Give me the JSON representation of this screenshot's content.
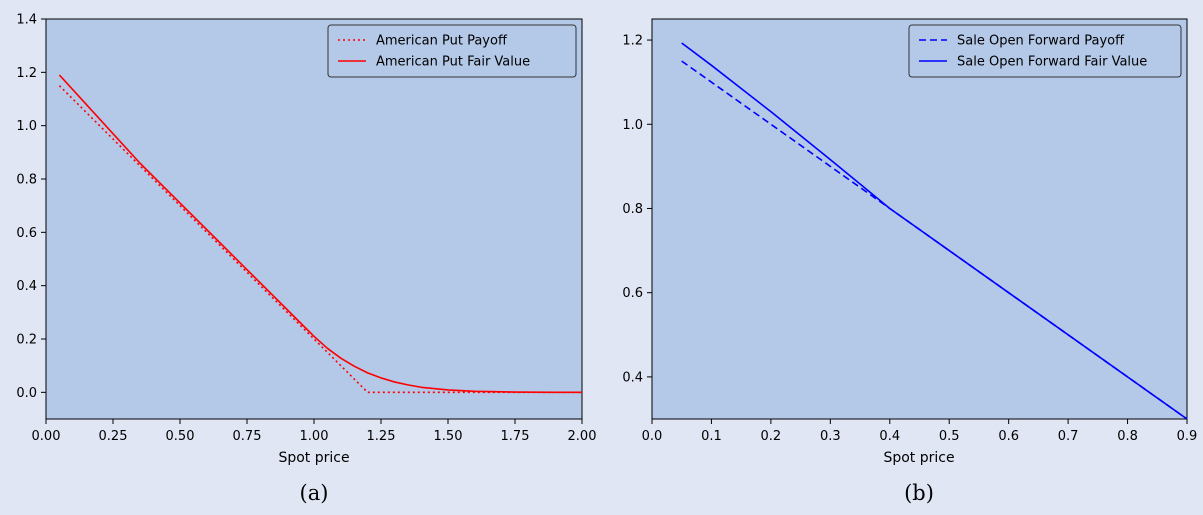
{
  "figure": {
    "background": "#e0e6f4",
    "plot_background": "#b4c8e8"
  },
  "chart_data": [
    {
      "type": "line",
      "caption": "(a)",
      "xlabel": "Spot price",
      "ylabel": "",
      "xlim": [
        0.0,
        2.0
      ],
      "ylim": [
        -0.1,
        1.4
      ],
      "xticks": [
        "0.00",
        "0.25",
        "0.50",
        "0.75",
        "1.00",
        "1.25",
        "1.50",
        "1.75",
        "2.00"
      ],
      "yticks": [
        "0.0",
        "0.2",
        "0.4",
        "0.6",
        "0.8",
        "1.0",
        "1.2",
        "1.4"
      ],
      "legend_position": "top-right",
      "series": [
        {
          "name": "American Put Payoff",
          "color": "#ff0000",
          "style": "dotted",
          "x": [
            0.05,
            1.2,
            2.0
          ],
          "y": [
            1.15,
            0.0,
            0.0
          ]
        },
        {
          "name": "American Put Fair Value",
          "color": "#ff0000",
          "style": "solid",
          "x": [
            0.05,
            0.15,
            0.25,
            0.35,
            0.45,
            0.55,
            0.65,
            0.75,
            0.85,
            0.95,
            1.0,
            1.05,
            1.1,
            1.15,
            1.2,
            1.25,
            1.3,
            1.35,
            1.4,
            1.5,
            1.6,
            1.75,
            1.9,
            2.0
          ],
          "y": [
            1.19,
            1.08,
            0.97,
            0.86,
            0.76,
            0.66,
            0.56,
            0.46,
            0.36,
            0.26,
            0.21,
            0.165,
            0.128,
            0.098,
            0.073,
            0.054,
            0.039,
            0.028,
            0.019,
            0.009,
            0.004,
            0.001,
            0.0,
            0.0
          ]
        }
      ]
    },
    {
      "type": "line",
      "caption": "(b)",
      "xlabel": "Spot price",
      "ylabel": "",
      "xlim": [
        0.0,
        0.9
      ],
      "ylim": [
        0.3,
        1.25
      ],
      "xticks": [
        "0.0",
        "0.1",
        "0.2",
        "0.3",
        "0.4",
        "0.5",
        "0.6",
        "0.7",
        "0.8",
        "0.9"
      ],
      "yticks": [
        "0.4",
        "0.6",
        "0.8",
        "1.0",
        "1.2"
      ],
      "legend_position": "top-right",
      "series": [
        {
          "name": "Sale Open Forward Payoff",
          "color": "#0000ff",
          "style": "dashed",
          "x": [
            0.05,
            0.9
          ],
          "y": [
            1.15,
            0.3
          ]
        },
        {
          "name": "Sale Open Forward Fair Value",
          "color": "#0000ff",
          "style": "solid",
          "x": [
            0.05,
            0.1,
            0.15,
            0.2,
            0.25,
            0.3,
            0.35,
            0.4,
            0.45,
            0.5,
            0.9
          ],
          "y": [
            1.193,
            1.14,
            1.085,
            1.03,
            0.973,
            0.916,
            0.858,
            0.8,
            0.75,
            0.7,
            0.3
          ]
        }
      ]
    }
  ]
}
